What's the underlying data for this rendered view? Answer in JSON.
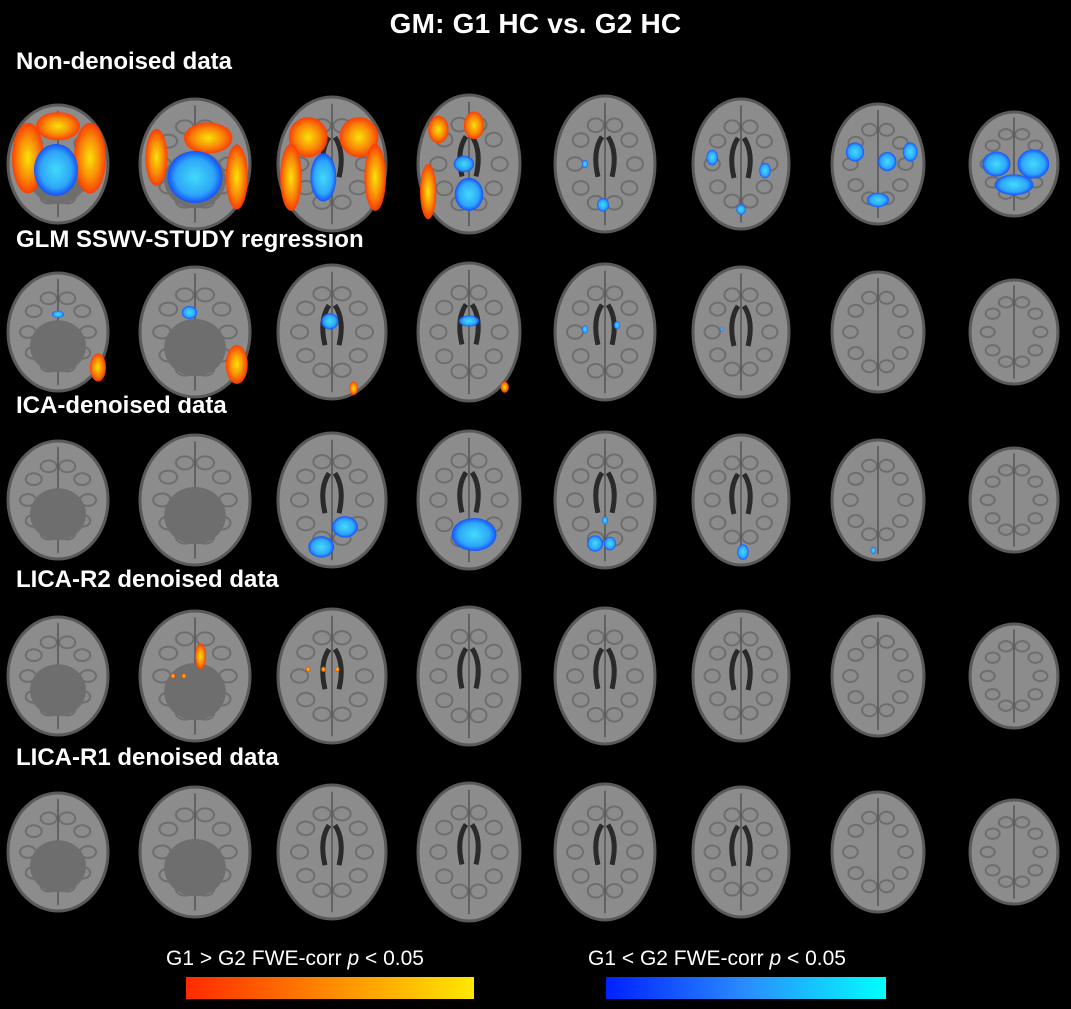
{
  "title": "GM: G1 HC vs. G2 HC",
  "rows": [
    {
      "label": "Non-denoised data"
    },
    {
      "label": "GLM SSWV-STUDY regression"
    },
    {
      "label": "ICA-denoised data"
    },
    {
      "label": "LICA-R2 denoised data"
    },
    {
      "label": "LICA-R1 denoised data"
    }
  ],
  "legend": {
    "positive": {
      "prefix": "G1 > G2   FWE-corr ",
      "p": "p",
      "suffix": " < 0.05",
      "gradient": [
        "#ff2a00",
        "#ff8a00",
        "#ffe800"
      ]
    },
    "negative": {
      "prefix": "G1 < G2   FWE-corr ",
      "p": "p",
      "suffix": " < 0.05",
      "gradient": [
        "#0020ff",
        "#2a8cff",
        "#00ffff"
      ]
    }
  },
  "colors": {
    "background": "#000000",
    "brain": "#8a8a8a",
    "positive_blob": "#ff8a00",
    "negative_blob": "#2aa8ff"
  }
}
